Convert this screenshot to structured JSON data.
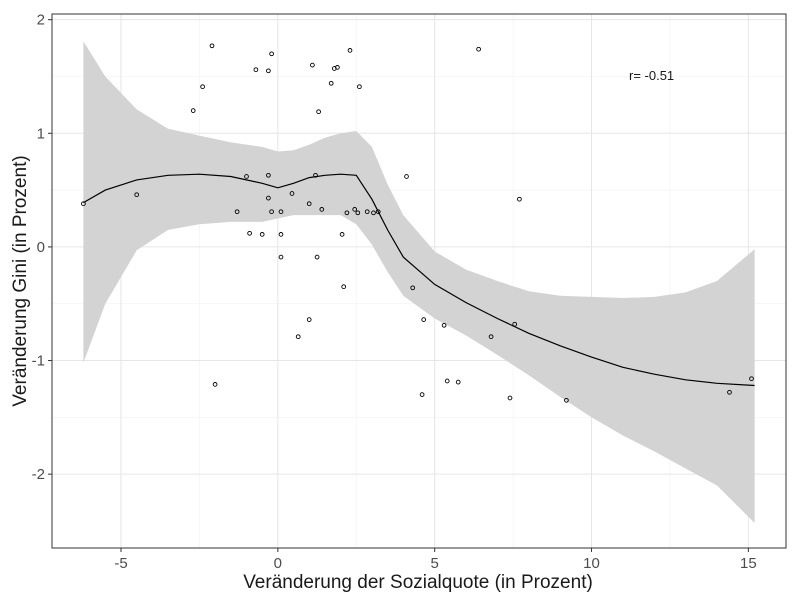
{
  "chart_data": {
    "type": "scatter",
    "title": "",
    "xlabel": "Veränderung der Sozialquote (in Prozent)",
    "ylabel": "Veränderung Gini (in Prozent)",
    "xlim": [
      -7.2,
      16.2
    ],
    "ylim": [
      -2.65,
      2.05
    ],
    "x_ticks": [
      -5,
      0,
      5,
      10,
      15
    ],
    "y_ticks": [
      -2,
      -1,
      0,
      1,
      2
    ],
    "x_tick_labels": [
      "-5",
      "0",
      "5",
      "10",
      "15"
    ],
    "y_tick_labels": [
      "-2",
      "-1",
      "0",
      "1",
      "2"
    ],
    "grid": true,
    "annotation": "r= -0.51",
    "colors": {
      "points": "#000000",
      "smooth_line": "#000000",
      "ribbon": "#d3d3d3",
      "panel_border": "#333333"
    },
    "points": [
      {
        "x": -6.2,
        "y": 0.38
      },
      {
        "x": -4.5,
        "y": 0.46
      },
      {
        "x": -2.7,
        "y": 1.2
      },
      {
        "x": -2.4,
        "y": 1.41
      },
      {
        "x": -2.1,
        "y": 1.77
      },
      {
        "x": -2.0,
        "y": -1.21
      },
      {
        "x": -1.3,
        "y": 0.31
      },
      {
        "x": -1.0,
        "y": 0.62
      },
      {
        "x": -0.9,
        "y": 0.12
      },
      {
        "x": -0.7,
        "y": 1.56
      },
      {
        "x": -0.5,
        "y": 0.11
      },
      {
        "x": -0.3,
        "y": 0.63
      },
      {
        "x": -0.3,
        "y": 1.55
      },
      {
        "x": -0.3,
        "y": 0.43
      },
      {
        "x": -0.2,
        "y": 1.7
      },
      {
        "x": -0.2,
        "y": 0.31
      },
      {
        "x": 0.1,
        "y": 0.11
      },
      {
        "x": 0.1,
        "y": 0.31
      },
      {
        "x": 0.1,
        "y": -0.09
      },
      {
        "x": 0.45,
        "y": 0.47
      },
      {
        "x": 0.65,
        "y": -0.79
      },
      {
        "x": 1.0,
        "y": 0.38
      },
      {
        "x": 1.0,
        "y": -0.64
      },
      {
        "x": 1.1,
        "y": 1.6
      },
      {
        "x": 1.2,
        "y": 0.63
      },
      {
        "x": 1.25,
        "y": -0.09
      },
      {
        "x": 1.3,
        "y": 1.19
      },
      {
        "x": 1.4,
        "y": 0.33
      },
      {
        "x": 1.7,
        "y": 1.44
      },
      {
        "x": 1.8,
        "y": 1.57
      },
      {
        "x": 1.9,
        "y": 1.58
      },
      {
        "x": 2.05,
        "y": 0.11
      },
      {
        "x": 2.1,
        "y": -0.35
      },
      {
        "x": 2.2,
        "y": 0.3
      },
      {
        "x": 2.3,
        "y": 1.73
      },
      {
        "x": 2.45,
        "y": 0.33
      },
      {
        "x": 2.55,
        "y": 0.3
      },
      {
        "x": 2.6,
        "y": 1.41
      },
      {
        "x": 2.85,
        "y": 0.31
      },
      {
        "x": 3.05,
        "y": 0.3
      },
      {
        "x": 3.2,
        "y": 0.31
      },
      {
        "x": 4.1,
        "y": 0.62
      },
      {
        "x": 4.3,
        "y": -0.36
      },
      {
        "x": 4.6,
        "y": -1.3
      },
      {
        "x": 4.65,
        "y": -0.64
      },
      {
        "x": 5.3,
        "y": -0.69
      },
      {
        "x": 5.4,
        "y": -1.18
      },
      {
        "x": 5.75,
        "y": -1.19
      },
      {
        "x": 6.4,
        "y": 1.74
      },
      {
        "x": 6.8,
        "y": -0.79
      },
      {
        "x": 7.4,
        "y": -1.33
      },
      {
        "x": 7.55,
        "y": -0.68
      },
      {
        "x": 7.7,
        "y": 0.42
      },
      {
        "x": 9.2,
        "y": -1.35
      },
      {
        "x": 14.4,
        "y": -1.28
      },
      {
        "x": 15.1,
        "y": -1.16
      }
    ],
    "smooth": [
      {
        "x": -6.2,
        "y": 0.39,
        "lo": -1.02,
        "hi": 1.81
      },
      {
        "x": -5.5,
        "y": 0.5,
        "lo": -0.5,
        "hi": 1.5
      },
      {
        "x": -4.5,
        "y": 0.59,
        "lo": -0.03,
        "hi": 1.21
      },
      {
        "x": -3.5,
        "y": 0.63,
        "lo": 0.15,
        "hi": 1.04
      },
      {
        "x": -2.5,
        "y": 0.64,
        "lo": 0.2,
        "hi": 0.98
      },
      {
        "x": -1.5,
        "y": 0.62,
        "lo": 0.22,
        "hi": 0.92
      },
      {
        "x": -0.5,
        "y": 0.56,
        "lo": 0.22,
        "hi": 0.88
      },
      {
        "x": 0.0,
        "y": 0.52,
        "lo": 0.25,
        "hi": 0.84
      },
      {
        "x": 0.5,
        "y": 0.56,
        "lo": 0.28,
        "hi": 0.85
      },
      {
        "x": 1.0,
        "y": 0.61,
        "lo": 0.28,
        "hi": 0.9
      },
      {
        "x": 1.5,
        "y": 0.63,
        "lo": 0.28,
        "hi": 0.96
      },
      {
        "x": 2.0,
        "y": 0.64,
        "lo": 0.28,
        "hi": 1.0
      },
      {
        "x": 2.5,
        "y": 0.63,
        "lo": 0.2,
        "hi": 1.02
      },
      {
        "x": 3.0,
        "y": 0.42,
        "lo": 0.02,
        "hi": 0.88
      },
      {
        "x": 3.5,
        "y": 0.15,
        "lo": -0.22,
        "hi": 0.55
      },
      {
        "x": 4.0,
        "y": -0.09,
        "lo": -0.43,
        "hi": 0.28
      },
      {
        "x": 5.0,
        "y": -0.33,
        "lo": -0.63,
        "hi": -0.04
      },
      {
        "x": 6.0,
        "y": -0.49,
        "lo": -0.78,
        "hi": -0.2
      },
      {
        "x": 7.0,
        "y": -0.63,
        "lo": -0.95,
        "hi": -0.3
      },
      {
        "x": 8.0,
        "y": -0.76,
        "lo": -1.13,
        "hi": -0.39
      },
      {
        "x": 9.0,
        "y": -0.87,
        "lo": -1.32,
        "hi": -0.43
      },
      {
        "x": 10.0,
        "y": -0.97,
        "lo": -1.5,
        "hi": -0.44
      },
      {
        "x": 11.0,
        "y": -1.06,
        "lo": -1.66,
        "hi": -0.45
      },
      {
        "x": 12.0,
        "y": -1.12,
        "lo": -1.8,
        "hi": -0.44
      },
      {
        "x": 13.0,
        "y": -1.17,
        "lo": -1.95,
        "hi": -0.4
      },
      {
        "x": 14.0,
        "y": -1.2,
        "lo": -2.1,
        "hi": -0.3
      },
      {
        "x": 15.2,
        "y": -1.22,
        "lo": -2.43,
        "hi": -0.02
      }
    ]
  }
}
